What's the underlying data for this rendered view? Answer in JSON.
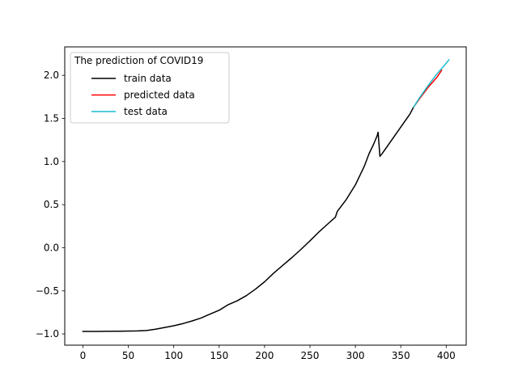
{
  "chart_data": {
    "type": "line",
    "title": "",
    "xlabel": "",
    "ylabel": "",
    "xlim": [
      -20,
      422
    ],
    "ylim": [
      -1.13,
      2.33
    ],
    "xticks": [
      0,
      50,
      100,
      150,
      200,
      250,
      300,
      350,
      400
    ],
    "xtick_labels": [
      "0",
      "50",
      "100",
      "150",
      "200",
      "250",
      "300",
      "350",
      "400"
    ],
    "yticks": [
      -1.0,
      -0.5,
      0.0,
      0.5,
      1.0,
      1.5,
      2.0
    ],
    "ytick_labels": [
      "−1.0",
      "−0.5",
      "0.0",
      "0.5",
      "1.0",
      "1.5",
      "2.0"
    ],
    "grid": false,
    "legend": {
      "title": "The prediction of COVID19",
      "placement": "top-left"
    },
    "series": [
      {
        "name": "train data",
        "color": "#000000",
        "x": [
          0,
          20,
          40,
          60,
          70,
          80,
          90,
          100,
          110,
          120,
          130,
          140,
          150,
          160,
          170,
          180,
          190,
          200,
          210,
          220,
          230,
          240,
          250,
          260,
          270,
          278,
          280,
          290,
          300,
          310,
          315,
          320,
          324,
          325,
          327,
          330,
          340,
          350,
          360,
          364
        ],
        "y": [
          -0.97,
          -0.97,
          -0.968,
          -0.965,
          -0.96,
          -0.945,
          -0.925,
          -0.905,
          -0.88,
          -0.85,
          -0.815,
          -0.77,
          -0.725,
          -0.66,
          -0.615,
          -0.555,
          -0.48,
          -0.395,
          -0.295,
          -0.205,
          -0.115,
          -0.02,
          0.08,
          0.185,
          0.28,
          0.355,
          0.42,
          0.56,
          0.73,
          0.95,
          1.09,
          1.2,
          1.3,
          1.34,
          1.06,
          1.1,
          1.25,
          1.4,
          1.55,
          1.63
        ]
      },
      {
        "name": "predicted data",
        "color": "#ff0000",
        "x": [
          364,
          370,
          380,
          390,
          395
        ],
        "y": [
          1.63,
          1.72,
          1.86,
          1.98,
          2.06
        ]
      },
      {
        "name": "test data",
        "color": "#17becf",
        "x": [
          364,
          370,
          380,
          390,
          400,
          403
        ],
        "y": [
          1.63,
          1.73,
          1.88,
          2.02,
          2.14,
          2.18
        ]
      }
    ]
  }
}
